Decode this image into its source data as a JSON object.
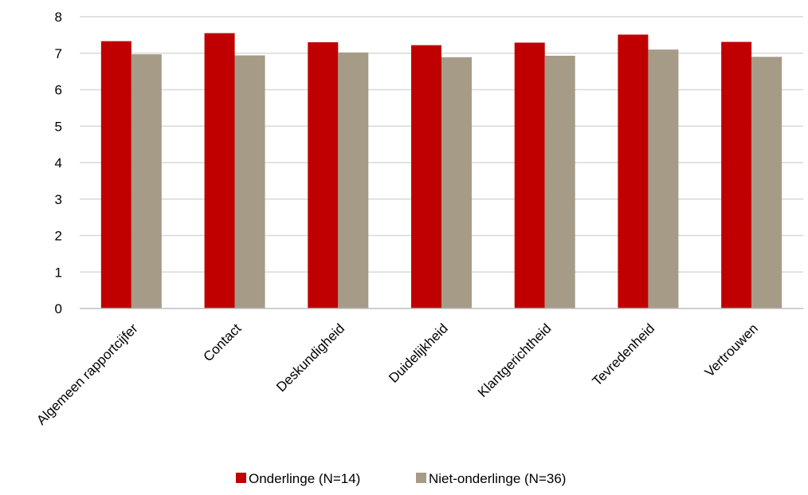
{
  "chart_data": {
    "type": "bar",
    "categories": [
      "Algemeen rapportcijfer",
      "Contact",
      "Deskundigheid",
      "Duidelijkheid",
      "Klantgerichtheid",
      "Tevredenheid",
      "Vertrouwen"
    ],
    "series": [
      {
        "name": "Onderlinge (N=14)",
        "color": "#c00000",
        "values": [
          7.33,
          7.55,
          7.3,
          7.22,
          7.29,
          7.51,
          7.31
        ]
      },
      {
        "name": "Niet-onderlinge (N=36)",
        "color": "#a59b87",
        "values": [
          6.97,
          6.94,
          7.02,
          6.89,
          6.93,
          7.1,
          6.9
        ]
      }
    ],
    "ylim": [
      0,
      8
    ],
    "yticks": [
      0,
      1,
      2,
      3,
      4,
      5,
      6,
      7,
      8
    ],
    "grid": true,
    "legend_position": "bottom",
    "xlabel": "",
    "ylabel": "",
    "title": ""
  }
}
